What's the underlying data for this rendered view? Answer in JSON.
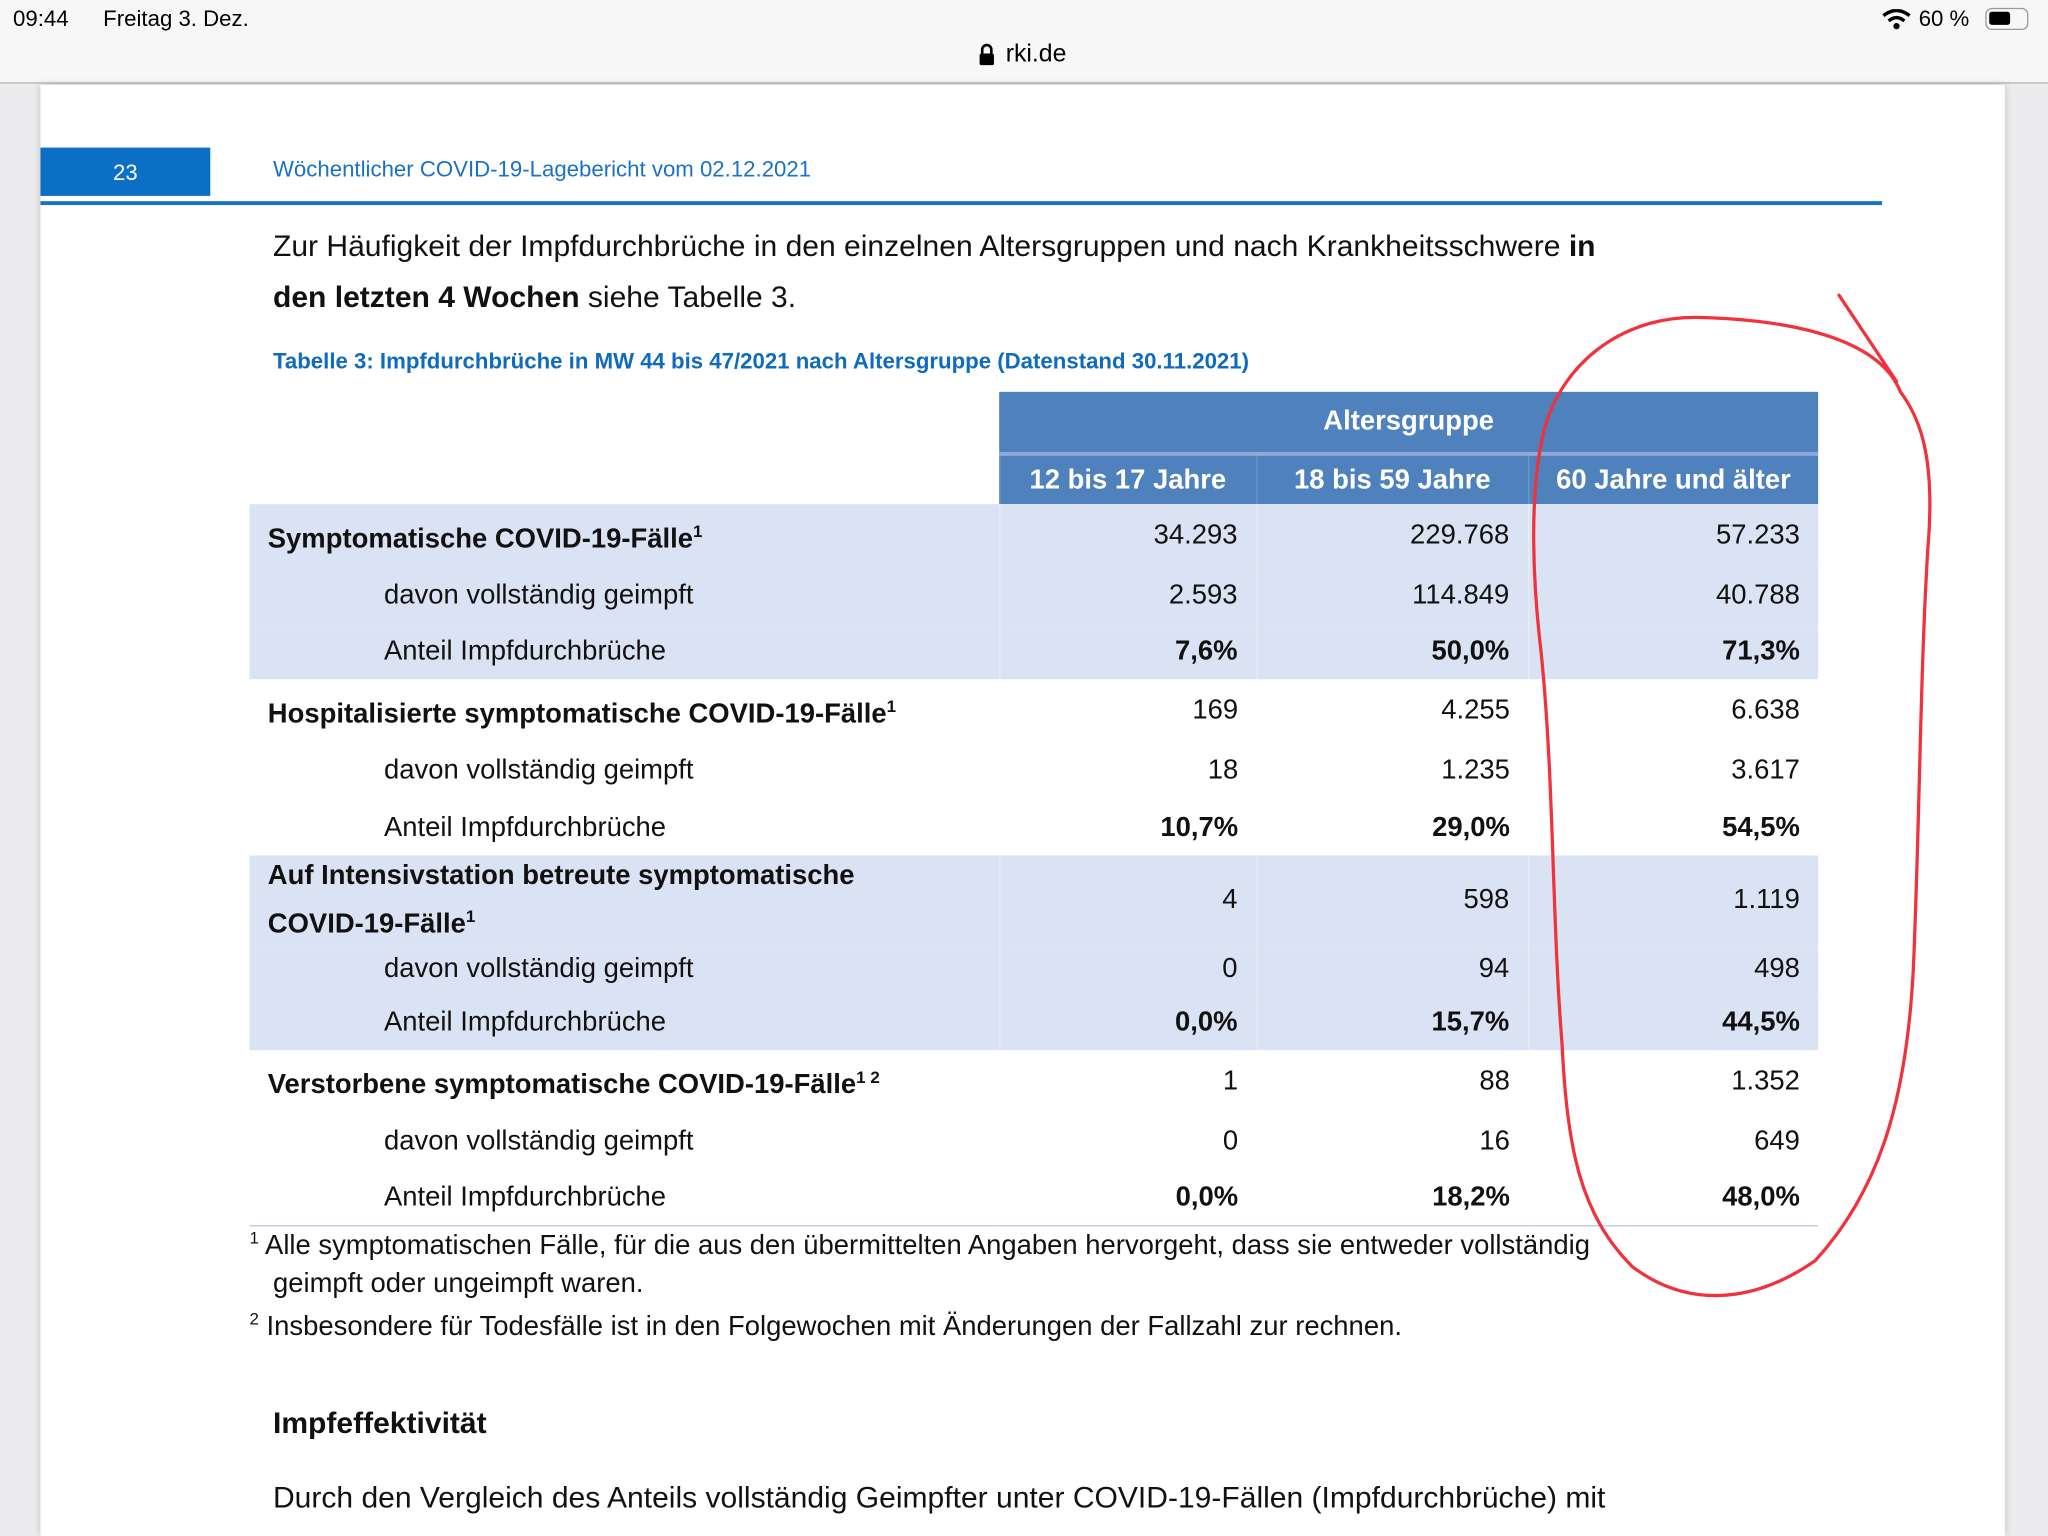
{
  "status_bar": {
    "time": "09:44",
    "date": "Freitag 3. Dez.",
    "battery": "60 %",
    "battery_level": 0.6,
    "url": "rki.de"
  },
  "page": {
    "number": "23",
    "running_header": "Wöchentlicher COVID-19-Lagebericht vom 02.12.2021",
    "intro": {
      "line1_text": "Zur Häufigkeit der Impfdurchbrüche in den einzelnen Altersgruppen und nach Krankheitsschwere ",
      "line1_bold": "in",
      "line2_bold": "den letzten 4 Wochen",
      "line2_text": " siehe Tabelle 3."
    },
    "table_caption": "Tabelle 3: Impfdurchbrüche in MW 44 bis 47/2021 nach Altersgruppe (Datenstand 30.11.2021)",
    "table": {
      "group_header": "Altersgruppe",
      "columns": [
        "12 bis 17 Jahre",
        "18 bis 59 Jahre",
        "60 Jahre und älter"
      ],
      "sections": [
        {
          "label": "Symptomatische COVID-19-Fälle",
          "sup": "1",
          "values": [
            "34.293",
            "229.768",
            "57.233"
          ],
          "vaccinated_label": "davon vollständig geimpft",
          "vaccinated": [
            "2.593",
            "114.849",
            "40.788"
          ],
          "share_label": "Anteil Impfdurchbrüche",
          "share": [
            "7,6%",
            "50,0%",
            "71,3%"
          ]
        },
        {
          "label": "Hospitalisierte symptomatische COVID-19-Fälle",
          "sup": "1",
          "values": [
            "169",
            "4.255",
            "6.638"
          ],
          "vaccinated_label": "davon vollständig geimpft",
          "vaccinated": [
            "18",
            "1.235",
            "3.617"
          ],
          "share_label": "Anteil Impfdurchbrüche",
          "share": [
            "10,7%",
            "29,0%",
            "54,5%"
          ]
        },
        {
          "label": "Auf Intensivstation betreute symptomatische",
          "label2": "COVID-19-Fälle",
          "sup": "1",
          "values": [
            "4",
            "598",
            "1.119"
          ],
          "vaccinated_label": "davon vollständig geimpft",
          "vaccinated": [
            "0",
            "94",
            "498"
          ],
          "share_label": "Anteil Impfdurchbrüche",
          "share": [
            "0,0%",
            "15,7%",
            "44,5%"
          ]
        },
        {
          "label": "Verstorbene symptomatische COVID-19-Fälle",
          "sup": "1 2",
          "values": [
            "1",
            "88",
            "1.352"
          ],
          "vaccinated_label": "davon vollständig geimpft",
          "vaccinated": [
            "0",
            "16",
            "649"
          ],
          "share_label": "Anteil Impfdurchbrüche",
          "share": [
            "0,0%",
            "18,2%",
            "48,0%"
          ]
        }
      ]
    },
    "footnotes": [
      {
        "mark": "1",
        "line1": " Alle symptomatischen Fälle, für die aus den übermittelten Angaben hervorgeht, dass sie entweder vollständig",
        "line2": "geimpft oder ungeimpft waren."
      },
      {
        "mark": "2",
        "line1": " Insbesondere für Todesfälle ist in den Folgewochen mit Änderungen der Fallzahl zur rechnen."
      }
    ],
    "section_heading": "Impfeffektivität",
    "body_text": "Durch den Vergleich des Anteils vollständig Geimpfter unter COVID-19-Fällen (Impfdurchbrüche) mit",
    "annotation_color": "#f0323c",
    "accent_color": "#1a72c4"
  }
}
